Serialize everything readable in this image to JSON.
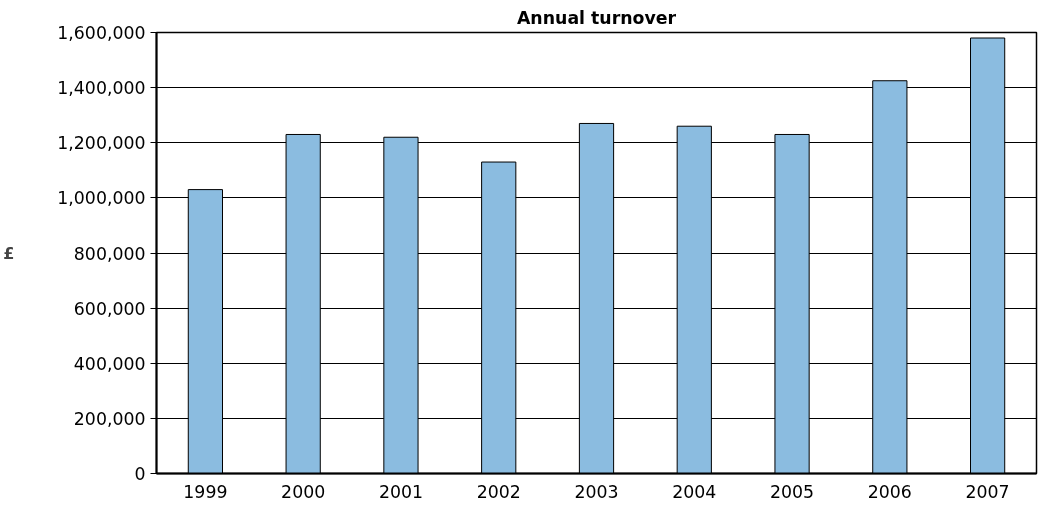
{
  "chart_data": {
    "type": "bar",
    "title": "Annual turnover",
    "ylabel": "£",
    "categories": [
      "1999",
      "2000",
      "2001",
      "2002",
      "2003",
      "2004",
      "2005",
      "2006",
      "2007"
    ],
    "series": [
      {
        "color": "#8bbce0",
        "values": [
          1030000,
          1230000,
          1220000,
          1130000,
          1270000,
          1260000,
          1230000,
          1425000,
          1580000
        ]
      }
    ],
    "ylim": [
      0,
      1600000
    ],
    "yticks": [
      {
        "value": 0,
        "label": "0"
      },
      {
        "value": 200000,
        "label": "200,000"
      },
      {
        "value": 400000,
        "label": "400,000"
      },
      {
        "value": 600000,
        "label": "600,000"
      },
      {
        "value": 800000,
        "label": "800,000"
      },
      {
        "value": 1000000,
        "label": "1,000,000"
      },
      {
        "value": 1200000,
        "label": "1,200,000"
      },
      {
        "value": 1400000,
        "label": "1,400,000"
      },
      {
        "value": 1600000,
        "label": "1,600,000"
      }
    ],
    "grid": "y"
  }
}
